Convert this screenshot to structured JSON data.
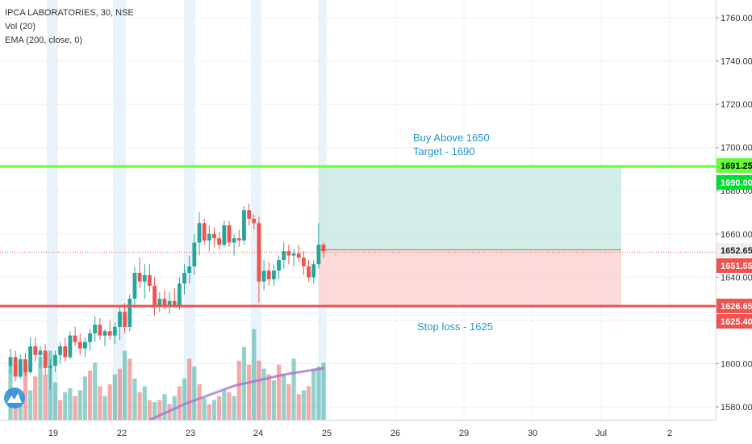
{
  "legend": {
    "symbol": "IPCA LABORATORIES, 30, NSE",
    "volume": "Vol (20)",
    "ema": "EMA (200, close, 0)"
  },
  "chart_data": {
    "type": "candlestick",
    "title": "IPCA LABORATORIES, 30, NSE",
    "ylim": [
      1572,
      1770
    ],
    "y_ticks": [
      1580,
      1600,
      1620,
      1640,
      1660,
      1680,
      1700,
      1720,
      1740,
      1760
    ],
    "y_tick_labels": [
      "1580.00",
      "1600.00",
      "1620.00",
      "1640.00",
      "1660.00",
      "1680.00",
      "1700.00",
      "1720.00",
      "1740.00",
      "1760.00"
    ],
    "x_ticks": [
      "19",
      "22",
      "23",
      "24",
      "25",
      "26",
      "29",
      "30",
      "Jul",
      "2"
    ],
    "grid": true,
    "colors": {
      "up": "#26a69a",
      "down": "#ef5350",
      "target_line": "#66ff33",
      "stop_line": "#ef5350",
      "ema": "#a070c8",
      "annotation": "#2196c8",
      "profit_zone": "#cdeae6",
      "loss_zone": "#fbd6d6"
    },
    "candles": [
      [
        1599,
        1607,
        1595,
        1603
      ],
      [
        1603,
        1606,
        1592,
        1594
      ],
      [
        1594,
        1604,
        1593,
        1602
      ],
      [
        1602,
        1605,
        1594,
        1596
      ],
      [
        1596,
        1612,
        1595,
        1608
      ],
      [
        1608,
        1612,
        1601,
        1604
      ],
      [
        1604,
        1608,
        1598,
        1606
      ],
      [
        1606,
        1609,
        1595,
        1598
      ],
      [
        1598,
        1602,
        1588,
        1599
      ],
      [
        1599,
        1606,
        1596,
        1604
      ],
      [
        1604,
        1610,
        1600,
        1608
      ],
      [
        1608,
        1612,
        1601,
        1603
      ],
      [
        1603,
        1615,
        1602,
        1613
      ],
      [
        1613,
        1617,
        1608,
        1610
      ],
      [
        1610,
        1614,
        1604,
        1607
      ],
      [
        1607,
        1612,
        1603,
        1610
      ],
      [
        1610,
        1616,
        1606,
        1614
      ],
      [
        1614,
        1622,
        1610,
        1618
      ],
      [
        1618,
        1621,
        1611,
        1613
      ],
      [
        1613,
        1616,
        1608,
        1615
      ],
      [
        1615,
        1620,
        1611,
        1613
      ],
      [
        1613,
        1619,
        1609,
        1617
      ],
      [
        1617,
        1627,
        1611,
        1624
      ],
      [
        1624,
        1628,
        1614,
        1617
      ],
      [
        1617,
        1632,
        1615,
        1630
      ],
      [
        1630,
        1645,
        1626,
        1642
      ],
      [
        1642,
        1649,
        1635,
        1638
      ],
      [
        1638,
        1646,
        1630,
        1641
      ],
      [
        1641,
        1646,
        1633,
        1636
      ],
      [
        1636,
        1640,
        1622,
        1627
      ],
      [
        1627,
        1633,
        1624,
        1630
      ],
      [
        1630,
        1634,
        1625,
        1627
      ],
      [
        1627,
        1633,
        1623,
        1629
      ],
      [
        1629,
        1635,
        1626,
        1627
      ],
      [
        1627,
        1640,
        1625,
        1637
      ],
      [
        1637,
        1646,
        1632,
        1642
      ],
      [
        1642,
        1650,
        1637,
        1645
      ],
      [
        1645,
        1660,
        1641,
        1656
      ],
      [
        1656,
        1670,
        1650,
        1665
      ],
      [
        1665,
        1667,
        1655,
        1657
      ],
      [
        1657,
        1664,
        1652,
        1660
      ],
      [
        1660,
        1663,
        1654,
        1658
      ],
      [
        1658,
        1661,
        1653,
        1655
      ],
      [
        1655,
        1666,
        1654,
        1664
      ],
      [
        1664,
        1666,
        1654,
        1656
      ],
      [
        1656,
        1660,
        1650,
        1658
      ],
      [
        1658,
        1662,
        1654,
        1657
      ],
      [
        1657,
        1673,
        1655,
        1671
      ],
      [
        1671,
        1674,
        1664,
        1667
      ],
      [
        1667,
        1669,
        1662,
        1665
      ],
      [
        1665,
        1668,
        1628,
        1638
      ],
      [
        1638,
        1648,
        1634,
        1643
      ],
      [
        1643,
        1647,
        1636,
        1639
      ],
      [
        1639,
        1646,
        1636,
        1643
      ],
      [
        1643,
        1650,
        1639,
        1648
      ],
      [
        1648,
        1656,
        1644,
        1652
      ],
      [
        1652,
        1655,
        1646,
        1650
      ],
      [
        1650,
        1653,
        1645,
        1651
      ],
      [
        1651,
        1655,
        1647,
        1649
      ],
      [
        1649,
        1652,
        1641,
        1645
      ],
      [
        1645,
        1648,
        1638,
        1640
      ],
      [
        1640,
        1648,
        1637,
        1646
      ],
      [
        1646,
        1665,
        1644,
        1655
      ],
      [
        1655,
        1656,
        1649,
        1652
      ]
    ],
    "volume": [
      [
        1,
        0.55
      ],
      [
        0,
        0.32
      ],
      [
        1,
        0.22
      ],
      [
        0,
        0.58
      ],
      [
        1,
        0.3
      ],
      [
        0,
        0.44
      ],
      [
        1,
        0.64
      ],
      [
        0,
        0.46
      ],
      [
        1,
        0.7
      ],
      [
        1,
        0.38
      ],
      [
        0,
        0.2
      ],
      [
        1,
        0.28
      ],
      [
        1,
        0.32
      ],
      [
        0,
        0.24
      ],
      [
        1,
        0.3
      ],
      [
        1,
        0.44
      ],
      [
        0,
        0.5
      ],
      [
        1,
        0.58
      ],
      [
        0,
        0.34
      ],
      [
        1,
        0.24
      ],
      [
        0,
        0.36
      ],
      [
        1,
        0.46
      ],
      [
        0,
        0.52
      ],
      [
        1,
        0.7
      ],
      [
        0,
        0.62
      ],
      [
        1,
        0.42
      ],
      [
        0,
        0.28
      ],
      [
        1,
        0.34
      ],
      [
        0,
        0.2
      ],
      [
        1,
        0.18
      ],
      [
        0,
        0.2
      ],
      [
        1,
        0.26
      ],
      [
        0,
        0.16
      ],
      [
        1,
        0.24
      ],
      [
        0,
        0.34
      ],
      [
        1,
        0.42
      ],
      [
        0,
        0.62
      ],
      [
        1,
        0.54
      ],
      [
        0,
        0.36
      ],
      [
        1,
        0.22
      ],
      [
        0,
        0.16
      ],
      [
        1,
        0.2
      ],
      [
        0,
        0.24
      ],
      [
        1,
        0.3
      ],
      [
        0,
        0.28
      ],
      [
        1,
        0.24
      ],
      [
        0,
        0.6
      ],
      [
        1,
        0.74
      ],
      [
        0,
        0.56
      ],
      [
        1,
        0.92
      ],
      [
        0,
        0.6
      ],
      [
        1,
        0.52
      ],
      [
        0,
        0.46
      ],
      [
        1,
        0.4
      ],
      [
        0,
        0.56
      ],
      [
        1,
        0.46
      ],
      [
        0,
        0.36
      ],
      [
        1,
        0.62
      ],
      [
        0,
        0.26
      ],
      [
        1,
        0.3
      ],
      [
        0,
        0.34
      ],
      [
        1,
        0.52
      ],
      [
        1,
        0.54
      ],
      [
        1,
        0.58
      ]
    ],
    "ema_line": [
      [
        1582.5,
        1595.6,
        1597.4
      ]
    ],
    "levels": {
      "target": 1691.25,
      "stop": 1626.65,
      "entry": 1652.65
    },
    "price_labels": [
      {
        "value": 1691.25,
        "text": "1691.25",
        "bg": "#66ff33",
        "fg": "#000000"
      },
      {
        "value": 1690.0,
        "text": "1690.00",
        "bg": "#00dd33",
        "fg": "#ffffff"
      },
      {
        "value": 1652.65,
        "text": "1652.65",
        "bg": "#efefef",
        "fg": "#222222"
      },
      {
        "value": 1651.55,
        "text": "1651.55",
        "bg": "#ef5350",
        "fg": "#ffffff"
      },
      {
        "value": 1626.65,
        "text": "1626.65",
        "bg": "#ef5350",
        "fg": "#ffffff"
      },
      {
        "value": 1625.4,
        "text": "1625.40",
        "bg": "#ef5350",
        "fg": "#ffffff"
      }
    ],
    "annotations": {
      "buy": "Buy Above 1650",
      "target": "Target - 1690",
      "stop": "Stop loss - 1625"
    }
  }
}
